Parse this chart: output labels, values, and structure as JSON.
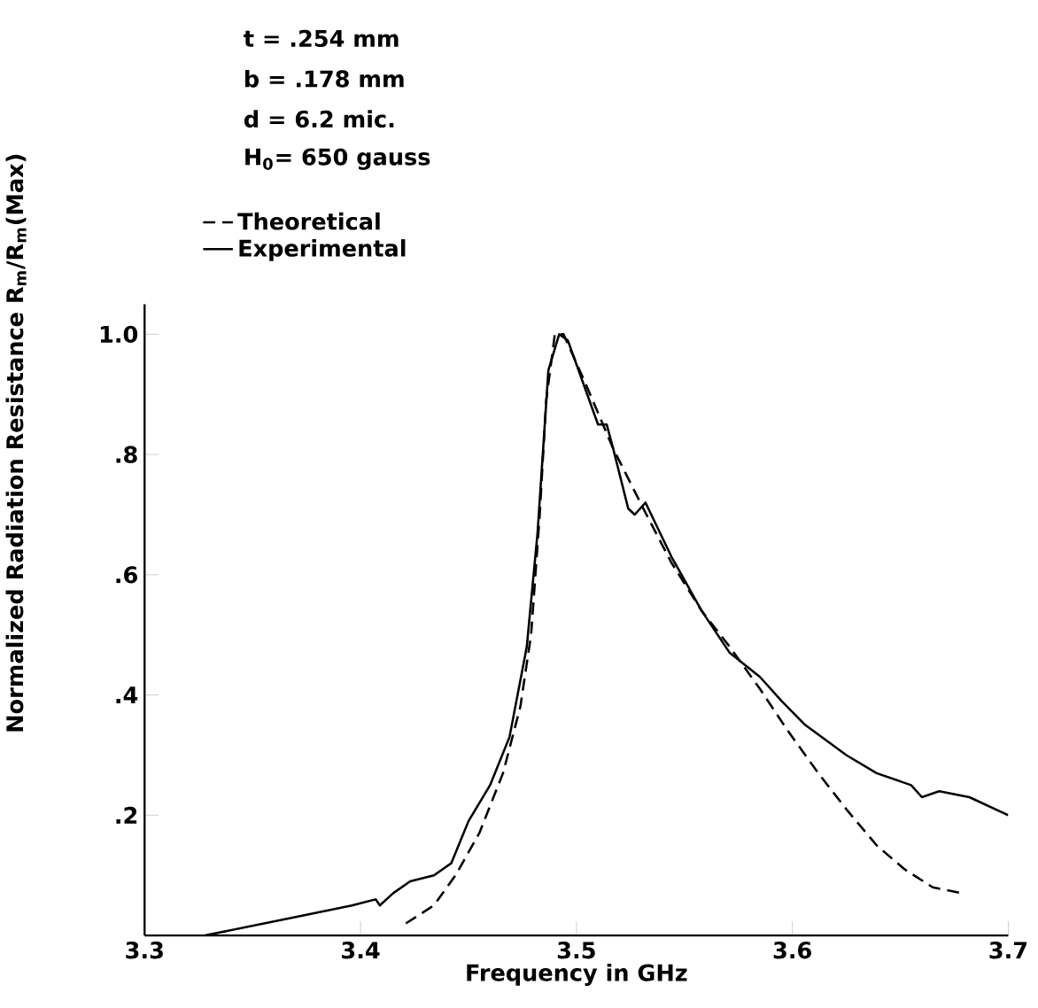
{
  "chart_data": {
    "type": "line",
    "xlabel": "Frequency in GHz",
    "ylabel": "Normalized Radiation Resistance R$_{m}$/R$_{m}$(Max)",
    "annotations": [
      "t = .254 mm",
      "b = .178 mm",
      "d = 6.2 mic.",
      "H$_{0}$= 650 gauss"
    ],
    "xlim": [
      3.3,
      3.7
    ],
    "ylim": [
      0,
      1.05
    ],
    "xticks": [
      3.3,
      3.4,
      3.5,
      3.6,
      3.7
    ],
    "yticks": [
      {
        "value": 0.2,
        "label": ".2"
      },
      {
        "value": 0.4,
        "label": ".4"
      },
      {
        "value": 0.6,
        "label": ".6"
      },
      {
        "value": 0.8,
        "label": ".8"
      },
      {
        "value": 1.0,
        "label": "1.0"
      }
    ],
    "legend": "top left",
    "grid": false,
    "series": [
      {
        "name": "Theoretical",
        "color": "#000000",
        "line_style": "dashed",
        "x": [
          3.421,
          3.434,
          3.444,
          3.455,
          3.466,
          3.474,
          3.479,
          3.483,
          3.486,
          3.49,
          3.494,
          3.504,
          3.517,
          3.531,
          3.544,
          3.558,
          3.571,
          3.585,
          3.598,
          3.612,
          3.625,
          3.639,
          3.652,
          3.665,
          3.679
        ],
        "values": [
          0.02,
          0.05,
          0.1,
          0.17,
          0.27,
          0.38,
          0.5,
          0.7,
          0.89,
          1.0,
          1.0,
          0.92,
          0.81,
          0.71,
          0.62,
          0.54,
          0.48,
          0.41,
          0.34,
          0.27,
          0.21,
          0.15,
          0.11,
          0.08,
          0.07
        ]
      },
      {
        "name": "Experimental",
        "color": "#000000",
        "line_style": "solid",
        "x": [
          3.328,
          3.369,
          3.396,
          3.407,
          3.409,
          3.415,
          3.423,
          3.434,
          3.442,
          3.45,
          3.46,
          3.469,
          3.477,
          3.482,
          3.487,
          3.492,
          3.496,
          3.504,
          3.51,
          3.514,
          3.517,
          3.524,
          3.527,
          3.532,
          3.544,
          3.558,
          3.571,
          3.585,
          3.595,
          3.606,
          3.625,
          3.639,
          3.655,
          3.66,
          3.668,
          3.682,
          3.7
        ],
        "values": [
          0.0,
          0.03,
          0.05,
          0.06,
          0.05,
          0.07,
          0.09,
          0.1,
          0.12,
          0.19,
          0.25,
          0.33,
          0.48,
          0.67,
          0.94,
          1.0,
          0.99,
          0.91,
          0.85,
          0.85,
          0.81,
          0.71,
          0.7,
          0.72,
          0.63,
          0.54,
          0.47,
          0.43,
          0.39,
          0.35,
          0.3,
          0.27,
          0.25,
          0.23,
          0.24,
          0.23,
          0.2
        ]
      }
    ]
  }
}
